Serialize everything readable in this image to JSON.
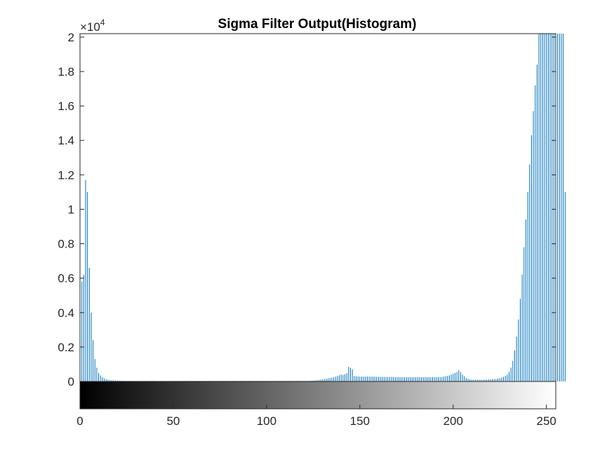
{
  "chart_data": {
    "type": "bar",
    "title": "Sigma Filter Output(Histogram)",
    "xlabel": "",
    "ylabel": "",
    "exponent_label": "×10",
    "exponent_power": "4",
    "xlim": [
      0,
      255
    ],
    "ylim": [
      0,
      20200
    ],
    "x_ticks": [
      0,
      50,
      100,
      150,
      200,
      250
    ],
    "y_ticks": [
      0,
      2000,
      4000,
      6000,
      8000,
      10000,
      12000,
      14000,
      16000,
      18000,
      20000
    ],
    "y_tick_labels": [
      "0",
      "0.2",
      "0.4",
      "0.6",
      "0.8",
      "1",
      "1.2",
      "1.4",
      "1.6",
      "1.8",
      "2"
    ],
    "x_tick_labels": [
      "0",
      "50",
      "100",
      "150",
      "200",
      "250"
    ],
    "bar_color": "#0072BD",
    "colorbar": "grayscale 0-255",
    "grid": false,
    "bins_start": 0,
    "values": [
      6500,
      5800,
      6200,
      11700,
      11000,
      6600,
      4000,
      2400,
      1300,
      800,
      500,
      350,
      250,
      180,
      130,
      100,
      80,
      70,
      60,
      55,
      50,
      45,
      42,
      40,
      38,
      36,
      35,
      34,
      33,
      32,
      31,
      30,
      30,
      30,
      30,
      30,
      30,
      30,
      30,
      30,
      30,
      30,
      30,
      30,
      30,
      30,
      30,
      30,
      30,
      30,
      30,
      30,
      30,
      30,
      30,
      30,
      30,
      30,
      30,
      30,
      30,
      30,
      30,
      30,
      30,
      30,
      30,
      30,
      30,
      30,
      30,
      30,
      30,
      30,
      30,
      30,
      30,
      30,
      30,
      30,
      30,
      30,
      30,
      30,
      30,
      30,
      30,
      30,
      30,
      30,
      30,
      30,
      30,
      30,
      30,
      30,
      30,
      30,
      30,
      30,
      30,
      30,
      30,
      30,
      30,
      30,
      30,
      30,
      30,
      30,
      30,
      30,
      30,
      30,
      30,
      30,
      30,
      30,
      30,
      30,
      30,
      30,
      30,
      30,
      40,
      50,
      60,
      70,
      90,
      100,
      120,
      140,
      160,
      180,
      200,
      220,
      250,
      280,
      320,
      360,
      400,
      380,
      420,
      480,
      850,
      800,
      700,
      320,
      300,
      300,
      280,
      280,
      280,
      280,
      290,
      280,
      280,
      280,
      280,
      270,
      270,
      270,
      270,
      260,
      260,
      260,
      260,
      260,
      260,
      250,
      250,
      250,
      250,
      250,
      250,
      250,
      250,
      250,
      250,
      250,
      250,
      250,
      250,
      250,
      250,
      250,
      250,
      250,
      250,
      250,
      250,
      250,
      250,
      250,
      260,
      280,
      300,
      330,
      360,
      400,
      450,
      500,
      550,
      650,
      550,
      400,
      300,
      200,
      150,
      120,
      100,
      100,
      100,
      100,
      100,
      100,
      100,
      110,
      110,
      120,
      120,
      130,
      140,
      150,
      170,
      190,
      220,
      260,
      320,
      400,
      550,
      800,
      1200,
      1800,
      2600,
      3600,
      4800,
      6200,
      7800,
      9400,
      11000,
      12600,
      14300,
      15700,
      17200,
      18400,
      20200,
      20200,
      20200,
      20200,
      20200,
      20200,
      20200,
      20200,
      20200,
      20200,
      20200,
      20200,
      20200,
      20200,
      11000
    ]
  }
}
